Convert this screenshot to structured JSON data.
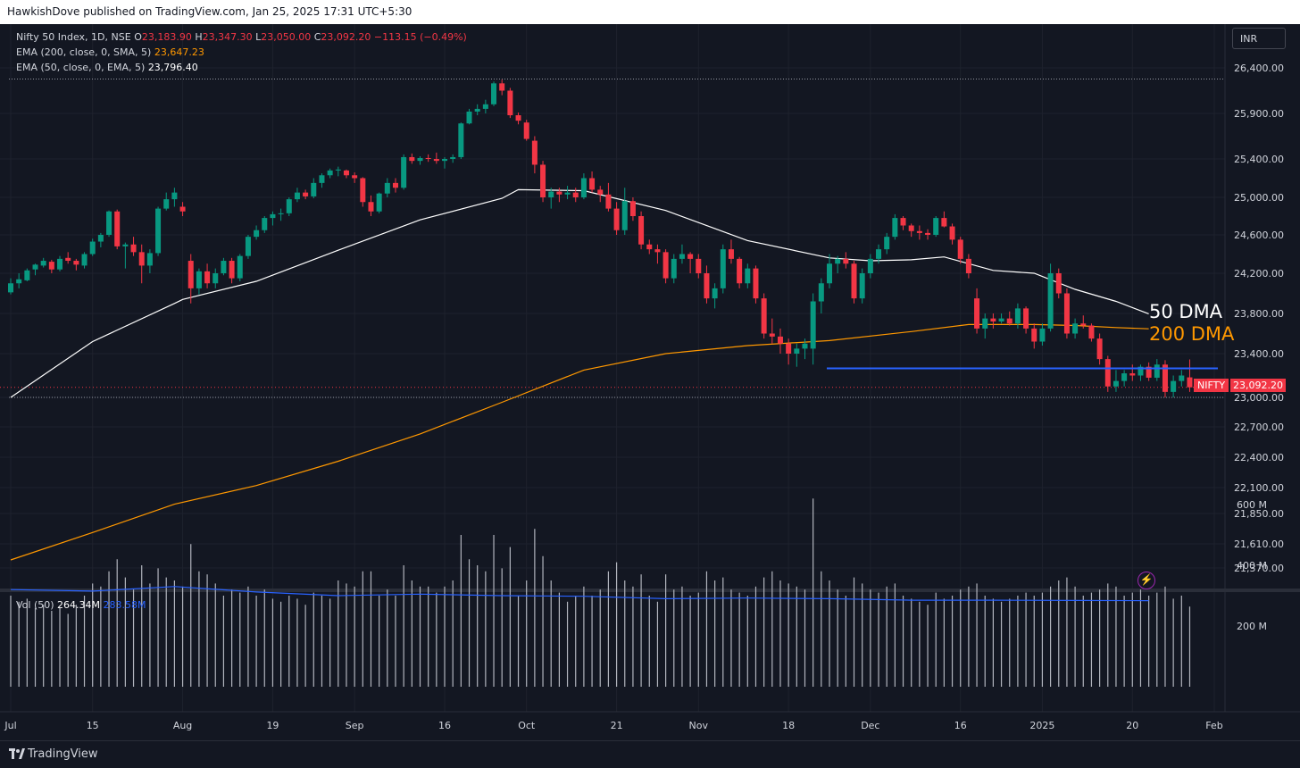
{
  "header": {
    "publisher": "HawkishDove published on TradingView.com, Jan 25, 2025 17:31 UTC+5:30"
  },
  "legend": {
    "symbol": "Nifty 50 Index, 1D, NSE",
    "open_label": "O",
    "open": "23,183.90",
    "high_label": "H",
    "high": "23,347.30",
    "low_label": "L",
    "low": "23,050.00",
    "close_label": "C",
    "close": "23,092.20",
    "change": "−113.15 (−0.49%)",
    "ema200_label": "EMA (200, close, 0, SMA, 5)",
    "ema200_value": "23,647.23",
    "ema50_label": "EMA (50, close, 0, EMA, 5)",
    "ema50_value": "23,796.40",
    "vol_label": "Vol (50)",
    "vol_value": "264.34M",
    "vol_ma_value": "283.58M"
  },
  "currency": "INR",
  "annotations": {
    "ma50": "50 DMA",
    "ma200": "200 DMA"
  },
  "price_tag": {
    "name": "NIFTY",
    "price": "23,092.20"
  },
  "footer": {
    "brand": "TradingView"
  },
  "colors": {
    "up": "#089981",
    "down": "#f23645",
    "ema50": "#ffffff",
    "ema200": "#ff9800",
    "support": "#2962ff",
    "vol_ma": "#2962ff",
    "background": "#131722"
  },
  "chart_data": {
    "type": "candlestick",
    "y_ticks": [
      26400,
      25900,
      25400,
      25000,
      24600,
      24200,
      23800,
      23400,
      23000,
      22700,
      22400,
      22100,
      21850,
      21610,
      21370
    ],
    "y_tick_labels": [
      "26,400.00",
      "25,900.00",
      "25,400.00",
      "25,000.00",
      "24,600.00",
      "24,200.00",
      "23,800.00",
      "23,400.00",
      "23,000.00",
      "22,700.00",
      "22,400.00",
      "22,100.00",
      "21,850.00",
      "21,610.00",
      "21,370.00"
    ],
    "x_ticks": [
      {
        "index": 0,
        "label": "Jul"
      },
      {
        "index": 10,
        "label": "15"
      },
      {
        "index": 21,
        "label": "Aug"
      },
      {
        "index": 32,
        "label": "19"
      },
      {
        "index": 42,
        "label": "Sep"
      },
      {
        "index": 53,
        "label": "16"
      },
      {
        "index": 63,
        "label": "Oct"
      },
      {
        "index": 74,
        "label": "21"
      },
      {
        "index": 84,
        "label": "Nov"
      },
      {
        "index": 95,
        "label": "18"
      },
      {
        "index": 105,
        "label": "Dec"
      },
      {
        "index": 116,
        "label": "16"
      },
      {
        "index": 126,
        "label": "2025"
      },
      {
        "index": 137,
        "label": "20"
      },
      {
        "index": 147,
        "label": "Feb"
      }
    ],
    "vol_ticks": [
      600,
      400,
      200
    ],
    "vol_tick_labels": [
      "600 M",
      "400 M",
      "200 M"
    ],
    "dotted_levels": [
      26277,
      23000
    ],
    "last_close": 23092.2,
    "support_level": 23265,
    "support_start_index": 100,
    "candles": [
      [
        24010,
        24150,
        23990,
        24100,
        300
      ],
      [
        24100,
        24200,
        24050,
        24140,
        280
      ],
      [
        24130,
        24250,
        24120,
        24230,
        290
      ],
      [
        24240,
        24300,
        24180,
        24290,
        260
      ],
      [
        24280,
        24360,
        24260,
        24330,
        270
      ],
      [
        24320,
        24340,
        24200,
        24240,
        250
      ],
      [
        24240,
        24380,
        24220,
        24350,
        260
      ],
      [
        24360,
        24420,
        24300,
        24330,
        240
      ],
      [
        24330,
        24350,
        24230,
        24290,
        270
      ],
      [
        24280,
        24420,
        24250,
        24400,
        300
      ],
      [
        24400,
        24560,
        24380,
        24530,
        340
      ],
      [
        24530,
        24620,
        24470,
        24600,
        330
      ],
      [
        24600,
        24860,
        24580,
        24850,
        380
      ],
      [
        24850,
        24870,
        24450,
        24480,
        420
      ],
      [
        24480,
        24520,
        24250,
        24500,
        360
      ],
      [
        24500,
        24580,
        24380,
        24420,
        320
      ],
      [
        24420,
        24500,
        24100,
        24280,
        400
      ],
      [
        24280,
        24450,
        24200,
        24410,
        340
      ],
      [
        24410,
        24900,
        24380,
        24880,
        390
      ],
      [
        24880,
        25050,
        24860,
        24980,
        360
      ],
      [
        24980,
        25100,
        24900,
        25050,
        350
      ],
      [
        24900,
        24950,
        24800,
        24850,
        330
      ],
      [
        24330,
        24400,
        23900,
        24050,
        470
      ],
      [
        24050,
        24250,
        23990,
        24220,
        380
      ],
      [
        24220,
        24300,
        24050,
        24100,
        370
      ],
      [
        24100,
        24250,
        24050,
        24200,
        340
      ],
      [
        24200,
        24360,
        24180,
        24330,
        300
      ],
      [
        24330,
        24360,
        24100,
        24150,
        320
      ],
      [
        24150,
        24400,
        24120,
        24380,
        310
      ],
      [
        24380,
        24600,
        24350,
        24580,
        330
      ],
      [
        24580,
        24700,
        24550,
        24650,
        300
      ],
      [
        24650,
        24800,
        24620,
        24780,
        320
      ],
      [
        24780,
        24850,
        24700,
        24820,
        290
      ],
      [
        24820,
        24880,
        24750,
        24830,
        280
      ],
      [
        24830,
        25000,
        24800,
        24980,
        300
      ],
      [
        24980,
        25100,
        24950,
        25050,
        290
      ],
      [
        25050,
        25080,
        24980,
        25010,
        270
      ],
      [
        25010,
        25200,
        24990,
        25150,
        310
      ],
      [
        25150,
        25250,
        25100,
        25230,
        300
      ],
      [
        25230,
        25300,
        25200,
        25280,
        290
      ],
      [
        25280,
        25320,
        25220,
        25290,
        350
      ],
      [
        25280,
        25290,
        25200,
        25230,
        340
      ],
      [
        25230,
        25260,
        25150,
        25200,
        330
      ],
      [
        25200,
        25210,
        24900,
        24950,
        380
      ],
      [
        24950,
        25020,
        24800,
        24850,
        380
      ],
      [
        24850,
        25050,
        24830,
        25040,
        300
      ],
      [
        25040,
        25200,
        25000,
        25150,
        320
      ],
      [
        25150,
        25200,
        25050,
        25100,
        300
      ],
      [
        25100,
        25450,
        25080,
        25420,
        400
      ],
      [
        25420,
        25460,
        25350,
        25380,
        350
      ],
      [
        25380,
        25430,
        25340,
        25410,
        330
      ],
      [
        25410,
        25450,
        25370,
        25400,
        330
      ],
      [
        25400,
        25470,
        25350,
        25380,
        310
      ],
      [
        25380,
        25420,
        25300,
        25400,
        330
      ],
      [
        25400,
        25450,
        25360,
        25420,
        350
      ],
      [
        25420,
        25800,
        25400,
        25790,
        500
      ],
      [
        25790,
        25950,
        25780,
        25920,
        420
      ],
      [
        25920,
        26000,
        25880,
        25950,
        400
      ],
      [
        25950,
        26050,
        25900,
        26000,
        380
      ],
      [
        26000,
        26250,
        25980,
        26230,
        500
      ],
      [
        26230,
        26270,
        26100,
        26150,
        390
      ],
      [
        26150,
        26180,
        25850,
        25880,
        460
      ],
      [
        25880,
        25910,
        25780,
        25820,
        300
      ],
      [
        25800,
        25830,
        25600,
        25620,
        350
      ],
      [
        25600,
        25650,
        25250,
        25340,
        520
      ],
      [
        25340,
        25380,
        24950,
        25000,
        430
      ],
      [
        25000,
        25100,
        24880,
        25060,
        350
      ],
      [
        25060,
        25100,
        24950,
        25030,
        310
      ],
      [
        25030,
        25120,
        24980,
        25050,
        280
      ],
      [
        25050,
        25100,
        24950,
        25000,
        300
      ],
      [
        25000,
        25250,
        24980,
        25200,
        330
      ],
      [
        25200,
        25270,
        25050,
        25080,
        300
      ],
      [
        25080,
        25120,
        24950,
        25030,
        320
      ],
      [
        25030,
        25150,
        24850,
        24880,
        380
      ],
      [
        24880,
        24950,
        24600,
        24650,
        410
      ],
      [
        24650,
        25100,
        24600,
        24960,
        350
      ],
      [
        24960,
        25000,
        24750,
        24800,
        330
      ],
      [
        24800,
        24850,
        24450,
        24500,
        370
      ],
      [
        24500,
        24550,
        24400,
        24450,
        300
      ],
      [
        24450,
        24500,
        24300,
        24420,
        280
      ],
      [
        24420,
        24450,
        24100,
        24150,
        370
      ],
      [
        24150,
        24400,
        24100,
        24350,
        320
      ],
      [
        24350,
        24500,
        24300,
        24400,
        330
      ],
      [
        24400,
        24420,
        24200,
        24350,
        300
      ],
      [
        24350,
        24400,
        24150,
        24200,
        310
      ],
      [
        24200,
        24280,
        23900,
        23950,
        380
      ],
      [
        23950,
        24100,
        23850,
        24050,
        350
      ],
      [
        24050,
        24500,
        24000,
        24450,
        360
      ],
      [
        24450,
        24550,
        24300,
        24350,
        320
      ],
      [
        24350,
        24370,
        24050,
        24100,
        310
      ],
      [
        24100,
        24300,
        24050,
        24250,
        300
      ],
      [
        24250,
        24280,
        23900,
        23950,
        330
      ],
      [
        23950,
        24000,
        23550,
        23600,
        360
      ],
      [
        23600,
        23750,
        23500,
        23570,
        380
      ],
      [
        23570,
        23650,
        23400,
        23500,
        350
      ],
      [
        23500,
        23550,
        23300,
        23400,
        340
      ],
      [
        23400,
        23500,
        23280,
        23450,
        330
      ],
      [
        23450,
        23550,
        23350,
        23500,
        320
      ],
      [
        23450,
        24000,
        23300,
        23920,
        620
      ],
      [
        23920,
        24150,
        23800,
        24100,
        380
      ],
      [
        24100,
        24400,
        24050,
        24300,
        350
      ],
      [
        24300,
        24380,
        24200,
        24350,
        320
      ],
      [
        24350,
        24420,
        24250,
        24300,
        300
      ],
      [
        24300,
        24330,
        23900,
        23950,
        360
      ],
      [
        23950,
        24250,
        23900,
        24200,
        340
      ],
      [
        24200,
        24400,
        24150,
        24350,
        320
      ],
      [
        24350,
        24500,
        24300,
        24450,
        310
      ],
      [
        24450,
        24620,
        24400,
        24580,
        330
      ],
      [
        24580,
        24820,
        24550,
        24780,
        340
      ],
      [
        24780,
        24800,
        24650,
        24700,
        300
      ],
      [
        24700,
        24720,
        24580,
        24640,
        290
      ],
      [
        24640,
        24700,
        24550,
        24620,
        280
      ],
      [
        24620,
        24660,
        24550,
        24600,
        270
      ],
      [
        24600,
        24800,
        24580,
        24780,
        310
      ],
      [
        24780,
        24850,
        24680,
        24690,
        290
      ],
      [
        24690,
        24720,
        24500,
        24550,
        300
      ],
      [
        24550,
        24580,
        24300,
        24350,
        320
      ],
      [
        24350,
        24400,
        24150,
        24200,
        330
      ],
      [
        23950,
        24050,
        23600,
        23650,
        340
      ],
      [
        23650,
        23800,
        23550,
        23750,
        300
      ],
      [
        23750,
        23800,
        23650,
        23720,
        290
      ],
      [
        23720,
        23800,
        23700,
        23750,
        280
      ],
      [
        23750,
        23820,
        23680,
        23700,
        290
      ],
      [
        23700,
        23900,
        23650,
        23850,
        300
      ],
      [
        23850,
        23870,
        23600,
        23650,
        310
      ],
      [
        23650,
        23700,
        23450,
        23520,
        300
      ],
      [
        23520,
        23700,
        23480,
        23650,
        310
      ],
      [
        23650,
        24300,
        23620,
        24200,
        330
      ],
      [
        24200,
        24250,
        23950,
        24000,
        350
      ],
      [
        24000,
        24050,
        23550,
        23600,
        360
      ],
      [
        23600,
        23750,
        23550,
        23700,
        330
      ],
      [
        23700,
        23780,
        23650,
        23680,
        300
      ],
      [
        23680,
        23700,
        23520,
        23550,
        310
      ],
      [
        23550,
        23600,
        23300,
        23350,
        320
      ],
      [
        23350,
        23380,
        23050,
        23100,
        340
      ],
      [
        23100,
        23250,
        23050,
        23150,
        330
      ],
      [
        23150,
        23250,
        23100,
        23220,
        300
      ],
      [
        23220,
        23300,
        23150,
        23200,
        310
      ],
      [
        23200,
        23300,
        23150,
        23280,
        320
      ],
      [
        23280,
        23320,
        23150,
        23180,
        300
      ],
      [
        23180,
        23350,
        23150,
        23300,
        310
      ],
      [
        23300,
        23340,
        23000,
        23050,
        330
      ],
      [
        23050,
        23200,
        23000,
        23150,
        290
      ],
      [
        23150,
        23250,
        23100,
        23200,
        300
      ],
      [
        23183,
        23347,
        23050,
        23092,
        264
      ]
    ],
    "ema50": [
      [
        0,
        23000
      ],
      [
        10,
        23520
      ],
      [
        20,
        23900
      ],
      [
        21,
        23940
      ],
      [
        30,
        24120
      ],
      [
        40,
        24440
      ],
      [
        50,
        24760
      ],
      [
        60,
        24990
      ],
      [
        62,
        25080
      ],
      [
        70,
        25070
      ],
      [
        80,
        24860
      ],
      [
        90,
        24540
      ],
      [
        100,
        24360
      ],
      [
        105,
        24330
      ],
      [
        110,
        24340
      ],
      [
        114,
        24370
      ],
      [
        120,
        24230
      ],
      [
        125,
        24200
      ],
      [
        130,
        24040
      ],
      [
        135,
        23920
      ],
      [
        139,
        23796
      ]
    ],
    "ema200": [
      [
        0,
        21450
      ],
      [
        10,
        21700
      ],
      [
        20,
        21940
      ],
      [
        30,
        22120
      ],
      [
        40,
        22360
      ],
      [
        50,
        22630
      ],
      [
        60,
        22950
      ],
      [
        70,
        23250
      ],
      [
        80,
        23400
      ],
      [
        90,
        23480
      ],
      [
        100,
        23530
      ],
      [
        110,
        23620
      ],
      [
        117,
        23690
      ],
      [
        125,
        23690
      ],
      [
        130,
        23680
      ],
      [
        135,
        23660
      ],
      [
        139,
        23647
      ]
    ],
    "vol_ma": [
      [
        0,
        320
      ],
      [
        10,
        315
      ],
      [
        20,
        330
      ],
      [
        30,
        312
      ],
      [
        40,
        300
      ],
      [
        50,
        305
      ],
      [
        60,
        300
      ],
      [
        70,
        298
      ],
      [
        80,
        290
      ],
      [
        90,
        292
      ],
      [
        100,
        290
      ],
      [
        110,
        285
      ],
      [
        120,
        285
      ],
      [
        130,
        284
      ],
      [
        139,
        283.58
      ]
    ]
  }
}
